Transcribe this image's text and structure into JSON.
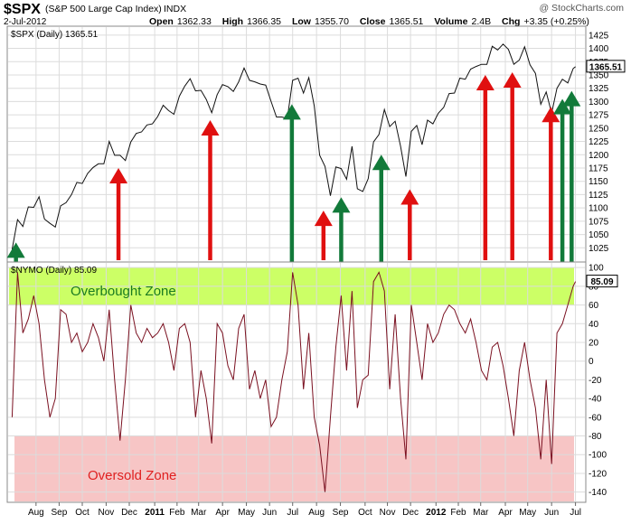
{
  "header": {
    "symbol": "$SPX",
    "name": "(S&P 500 Large Cap Index)",
    "exchange": "INDX",
    "watermark": "@ StockCharts.com",
    "date": "2-Jul-2012",
    "stats": [
      {
        "label": "Open",
        "value": "1362.33"
      },
      {
        "label": "High",
        "value": "1366.35"
      },
      {
        "label": "Low",
        "value": "1355.70"
      },
      {
        "label": "Close",
        "value": "1365.51"
      },
      {
        "label": "Volume",
        "value": "2.4B"
      },
      {
        "label": "Chg",
        "value": "+3.35 (+0.25%)"
      }
    ]
  },
  "colors": {
    "price_line": "#111111",
    "nymo_line": "#7a1020",
    "overbought_fill": "#ccff66",
    "oversold_fill": "#f7c5c5",
    "up_arrow": "#127a3a",
    "down_arrow": "#e01010",
    "overbought_text": "#1a7a20",
    "oversold_text": "#e02020",
    "grid": "#dcdcdc"
  },
  "chart_data": [
    {
      "type": "line",
      "legend": "$SPX (Daily) 1365.51",
      "last_value": "1365.51",
      "ylim": [
        1000,
        1440
      ],
      "y_ticks": [
        1025,
        1050,
        1075,
        1100,
        1125,
        1150,
        1175,
        1200,
        1225,
        1250,
        1275,
        1300,
        1325,
        1350,
        1375,
        1400,
        1425
      ],
      "x": [
        "2010-07-02",
        "2010-07-09",
        "2010-07-16",
        "2010-07-23",
        "2010-07-30",
        "2010-08-06",
        "2010-08-13",
        "2010-08-20",
        "2010-08-27",
        "2010-09-03",
        "2010-09-10",
        "2010-09-17",
        "2010-09-24",
        "2010-10-01",
        "2010-10-08",
        "2010-10-15",
        "2010-10-22",
        "2010-10-29",
        "2010-11-05",
        "2010-11-12",
        "2010-11-19",
        "2010-11-26",
        "2010-12-03",
        "2010-12-10",
        "2010-12-17",
        "2010-12-24",
        "2010-12-31",
        "2011-01-07",
        "2011-01-14",
        "2011-01-21",
        "2011-01-28",
        "2011-02-04",
        "2011-02-11",
        "2011-02-18",
        "2011-02-25",
        "2011-03-04",
        "2011-03-11",
        "2011-03-18",
        "2011-03-25",
        "2011-04-01",
        "2011-04-08",
        "2011-04-15",
        "2011-04-22",
        "2011-04-29",
        "2011-05-06",
        "2011-05-13",
        "2011-05-20",
        "2011-05-27",
        "2011-06-03",
        "2011-06-10",
        "2011-06-17",
        "2011-06-24",
        "2011-07-01",
        "2011-07-08",
        "2011-07-15",
        "2011-07-22",
        "2011-07-29",
        "2011-08-05",
        "2011-08-12",
        "2011-08-19",
        "2011-08-26",
        "2011-09-02",
        "2011-09-09",
        "2011-09-16",
        "2011-09-23",
        "2011-09-30",
        "2011-10-07",
        "2011-10-14",
        "2011-10-21",
        "2011-10-28",
        "2011-11-04",
        "2011-11-11",
        "2011-11-18",
        "2011-11-25",
        "2011-12-02",
        "2011-12-09",
        "2011-12-16",
        "2011-12-23",
        "2011-12-30",
        "2012-01-06",
        "2012-01-13",
        "2012-01-20",
        "2012-01-27",
        "2012-02-03",
        "2012-02-10",
        "2012-02-17",
        "2012-02-24",
        "2012-03-02",
        "2012-03-09",
        "2012-03-16",
        "2012-03-23",
        "2012-03-30",
        "2012-04-06",
        "2012-04-13",
        "2012-04-20",
        "2012-04-27",
        "2012-05-04",
        "2012-05-11",
        "2012-05-18",
        "2012-05-25",
        "2012-06-01",
        "2012-06-08",
        "2012-06-15",
        "2012-06-22",
        "2012-06-29",
        "2012-07-02"
      ],
      "values": [
        1022,
        1078,
        1065,
        1102,
        1101,
        1121,
        1079,
        1071,
        1064,
        1104,
        1110,
        1125,
        1148,
        1146,
        1165,
        1176,
        1183,
        1183,
        1225,
        1199,
        1199,
        1189,
        1224,
        1240,
        1243,
        1256,
        1258,
        1272,
        1293,
        1283,
        1276,
        1310,
        1329,
        1343,
        1320,
        1321,
        1304,
        1279,
        1313,
        1332,
        1328,
        1319,
        1337,
        1363,
        1340,
        1337,
        1333,
        1331,
        1300,
        1271,
        1271,
        1268,
        1340,
        1344,
        1316,
        1345,
        1292,
        1199,
        1178,
        1123,
        1177,
        1174,
        1154,
        1216,
        1136,
        1131,
        1155,
        1224,
        1238,
        1285,
        1253,
        1263,
        1216,
        1159,
        1244,
        1255,
        1219,
        1265,
        1258,
        1278,
        1289,
        1315,
        1316,
        1344,
        1342,
        1361,
        1366,
        1370,
        1370,
        1404,
        1397,
        1408,
        1398,
        1370,
        1378,
        1403,
        1369,
        1353,
        1295,
        1318,
        1278,
        1325,
        1342,
        1335,
        1362,
        1365.51
      ],
      "arrows": [
        {
          "date": "2010-07-07",
          "direction": "up",
          "level": 1035
        },
        {
          "date": "2010-11-17",
          "direction": "down",
          "level": 1175
        },
        {
          "date": "2011-03-16",
          "direction": "down",
          "level": 1265
        },
        {
          "date": "2011-06-30",
          "direction": "up",
          "level": 1295
        },
        {
          "date": "2011-08-10",
          "direction": "down",
          "level": 1095
        },
        {
          "date": "2011-09-02",
          "direction": "up",
          "level": 1120
        },
        {
          "date": "2011-10-24",
          "direction": "up",
          "level": 1200
        },
        {
          "date": "2011-11-30",
          "direction": "down",
          "level": 1135
        },
        {
          "date": "2012-03-07",
          "direction": "down",
          "level": 1350
        },
        {
          "date": "2012-04-11",
          "direction": "down",
          "level": 1355
        },
        {
          "date": "2012-05-31",
          "direction": "down",
          "level": 1290
        },
        {
          "date": "2012-06-15",
          "direction": "up",
          "level": 1305
        },
        {
          "date": "2012-06-27",
          "direction": "up",
          "level": 1320
        }
      ]
    },
    {
      "type": "line",
      "legend": "$NYMO (Daily) 85.09",
      "last_value": "85.09",
      "ylim": [
        -150,
        105
      ],
      "y_ticks": [
        -140,
        -120,
        -100,
        -80,
        -60,
        -40,
        -20,
        0,
        20,
        40,
        60,
        80,
        100
      ],
      "x": [
        "2010-07-02",
        "2010-07-09",
        "2010-07-16",
        "2010-07-23",
        "2010-07-30",
        "2010-08-06",
        "2010-08-13",
        "2010-08-20",
        "2010-08-27",
        "2010-09-03",
        "2010-09-10",
        "2010-09-17",
        "2010-09-24",
        "2010-10-01",
        "2010-10-08",
        "2010-10-15",
        "2010-10-22",
        "2010-10-29",
        "2010-11-05",
        "2010-11-12",
        "2010-11-19",
        "2010-11-26",
        "2010-12-03",
        "2010-12-10",
        "2010-12-17",
        "2010-12-24",
        "2010-12-31",
        "2011-01-07",
        "2011-01-14",
        "2011-01-21",
        "2011-01-28",
        "2011-02-04",
        "2011-02-11",
        "2011-02-18",
        "2011-02-25",
        "2011-03-04",
        "2011-03-11",
        "2011-03-18",
        "2011-03-25",
        "2011-04-01",
        "2011-04-08",
        "2011-04-15",
        "2011-04-22",
        "2011-04-29",
        "2011-05-06",
        "2011-05-13",
        "2011-05-20",
        "2011-05-27",
        "2011-06-03",
        "2011-06-10",
        "2011-06-17",
        "2011-06-24",
        "2011-07-01",
        "2011-07-08",
        "2011-07-15",
        "2011-07-22",
        "2011-07-29",
        "2011-08-05",
        "2011-08-12",
        "2011-08-19",
        "2011-08-26",
        "2011-09-02",
        "2011-09-09",
        "2011-09-16",
        "2011-09-23",
        "2011-09-30",
        "2011-10-07",
        "2011-10-14",
        "2011-10-21",
        "2011-10-28",
        "2011-11-04",
        "2011-11-11",
        "2011-11-18",
        "2011-11-25",
        "2011-12-02",
        "2011-12-09",
        "2011-12-16",
        "2011-12-23",
        "2011-12-30",
        "2012-01-06",
        "2012-01-13",
        "2012-01-20",
        "2012-01-27",
        "2012-02-03",
        "2012-02-10",
        "2012-02-17",
        "2012-02-24",
        "2012-03-02",
        "2012-03-09",
        "2012-03-16",
        "2012-03-23",
        "2012-03-30",
        "2012-04-06",
        "2012-04-13",
        "2012-04-20",
        "2012-04-27",
        "2012-05-04",
        "2012-05-11",
        "2012-05-18",
        "2012-05-25",
        "2012-06-01",
        "2012-06-08",
        "2012-06-15",
        "2012-06-22",
        "2012-06-29",
        "2012-07-02"
      ],
      "values": [
        -60,
        95,
        30,
        45,
        70,
        40,
        -20,
        -60,
        -40,
        55,
        50,
        20,
        30,
        10,
        20,
        40,
        25,
        0,
        55,
        -20,
        -85,
        -20,
        60,
        30,
        20,
        35,
        25,
        30,
        40,
        20,
        -10,
        35,
        40,
        20,
        -60,
        -10,
        -40,
        -88,
        40,
        30,
        -5,
        -20,
        35,
        50,
        -30,
        -10,
        -40,
        -20,
        -70,
        -60,
        -20,
        10,
        95,
        60,
        -30,
        30,
        -60,
        -90,
        -140,
        -60,
        15,
        70,
        -10,
        75,
        -50,
        -20,
        -15,
        85,
        95,
        75,
        -30,
        50,
        -40,
        -105,
        60,
        20,
        -20,
        40,
        20,
        30,
        50,
        60,
        55,
        40,
        30,
        45,
        20,
        -10,
        -20,
        15,
        20,
        -5,
        -40,
        -80,
        -10,
        20,
        -20,
        -50,
        -105,
        -20,
        -110,
        30,
        40,
        60,
        80,
        85.09
      ],
      "zones": [
        {
          "label": "Overbought Zone",
          "from": 60,
          "to": 100
        },
        {
          "label": "Oversold Zone",
          "from": -150,
          "to": -80
        }
      ]
    }
  ],
  "x_axis": {
    "ticks": [
      {
        "label": "Aug",
        "date": "2010-08-02",
        "bold": false
      },
      {
        "label": "Sep",
        "date": "2010-09-01",
        "bold": false
      },
      {
        "label": "Oct",
        "date": "2010-10-01",
        "bold": false
      },
      {
        "label": "Nov",
        "date": "2010-11-01",
        "bold": false
      },
      {
        "label": "Dec",
        "date": "2010-12-01",
        "bold": false
      },
      {
        "label": "2011",
        "date": "2011-01-03",
        "bold": true
      },
      {
        "label": "Feb",
        "date": "2011-02-01",
        "bold": false
      },
      {
        "label": "Mar",
        "date": "2011-03-01",
        "bold": false
      },
      {
        "label": "Apr",
        "date": "2011-04-01",
        "bold": false
      },
      {
        "label": "May",
        "date": "2011-05-02",
        "bold": false
      },
      {
        "label": "Jun",
        "date": "2011-06-01",
        "bold": false
      },
      {
        "label": "Jul",
        "date": "2011-07-01",
        "bold": false
      },
      {
        "label": "Aug",
        "date": "2011-08-01",
        "bold": false
      },
      {
        "label": "Sep",
        "date": "2011-09-01",
        "bold": false
      },
      {
        "label": "Oct",
        "date": "2011-10-03",
        "bold": false
      },
      {
        "label": "Nov",
        "date": "2011-11-01",
        "bold": false
      },
      {
        "label": "Dec",
        "date": "2011-12-01",
        "bold": false
      },
      {
        "label": "2012",
        "date": "2012-01-03",
        "bold": true
      },
      {
        "label": "Feb",
        "date": "2012-02-01",
        "bold": false
      },
      {
        "label": "Mar",
        "date": "2012-03-01",
        "bold": false
      },
      {
        "label": "Apr",
        "date": "2012-04-02",
        "bold": false
      },
      {
        "label": "May",
        "date": "2012-05-01",
        "bold": false
      },
      {
        "label": "Jun",
        "date": "2012-06-01",
        "bold": false
      },
      {
        "label": "Jul",
        "date": "2012-07-02",
        "bold": false
      }
    ]
  }
}
